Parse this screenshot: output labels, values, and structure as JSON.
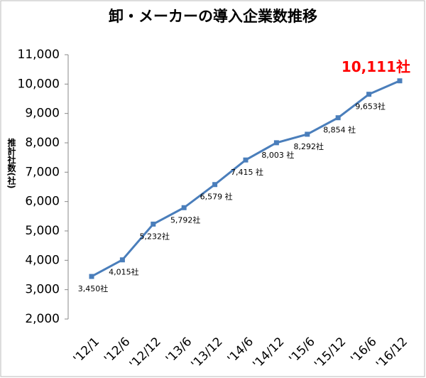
{
  "chart_data": {
    "type": "line",
    "title": "卸・メーカーの導入企業数推移",
    "y_label": "推計社数(社)",
    "categories": [
      "'12/1",
      "'12/6",
      "'12/12",
      "'13/6",
      "'13/12",
      "'14/6",
      "'14/12",
      "'15/6",
      "'15/12",
      "'16/6",
      "'16/12"
    ],
    "series": [
      {
        "color": "#4a7ebb",
        "values": [
          3450,
          4015,
          5232,
          5792,
          6579,
          7415,
          8003,
          8292,
          8854,
          9653,
          10111
        ],
        "value_labels": [
          "3,450社",
          "4,015社",
          "5,232社",
          "5,792社",
          "6,579 社",
          "7,415 社",
          "8,003 社",
          "8,292社",
          "8,854 社",
          "9,653社",
          "10,111社"
        ]
      }
    ],
    "highlight_color": "#ff0000",
    "ylim": [
      2000,
      11000
    ],
    "yticks": [
      {
        "value": 2000,
        "label": "2,000"
      },
      {
        "value": 3000,
        "label": "3,000"
      },
      {
        "value": 4000,
        "label": "4,000"
      },
      {
        "value": 5000,
        "label": "5,000"
      },
      {
        "value": 6000,
        "label": "6,000"
      },
      {
        "value": 7000,
        "label": "7,000"
      },
      {
        "value": 8000,
        "label": "8,000"
      },
      {
        "value": 9000,
        "label": "9,000"
      },
      {
        "value": 10000,
        "label": "10,000"
      },
      {
        "value": 11000,
        "label": "11,000"
      }
    ],
    "grid": false
  }
}
